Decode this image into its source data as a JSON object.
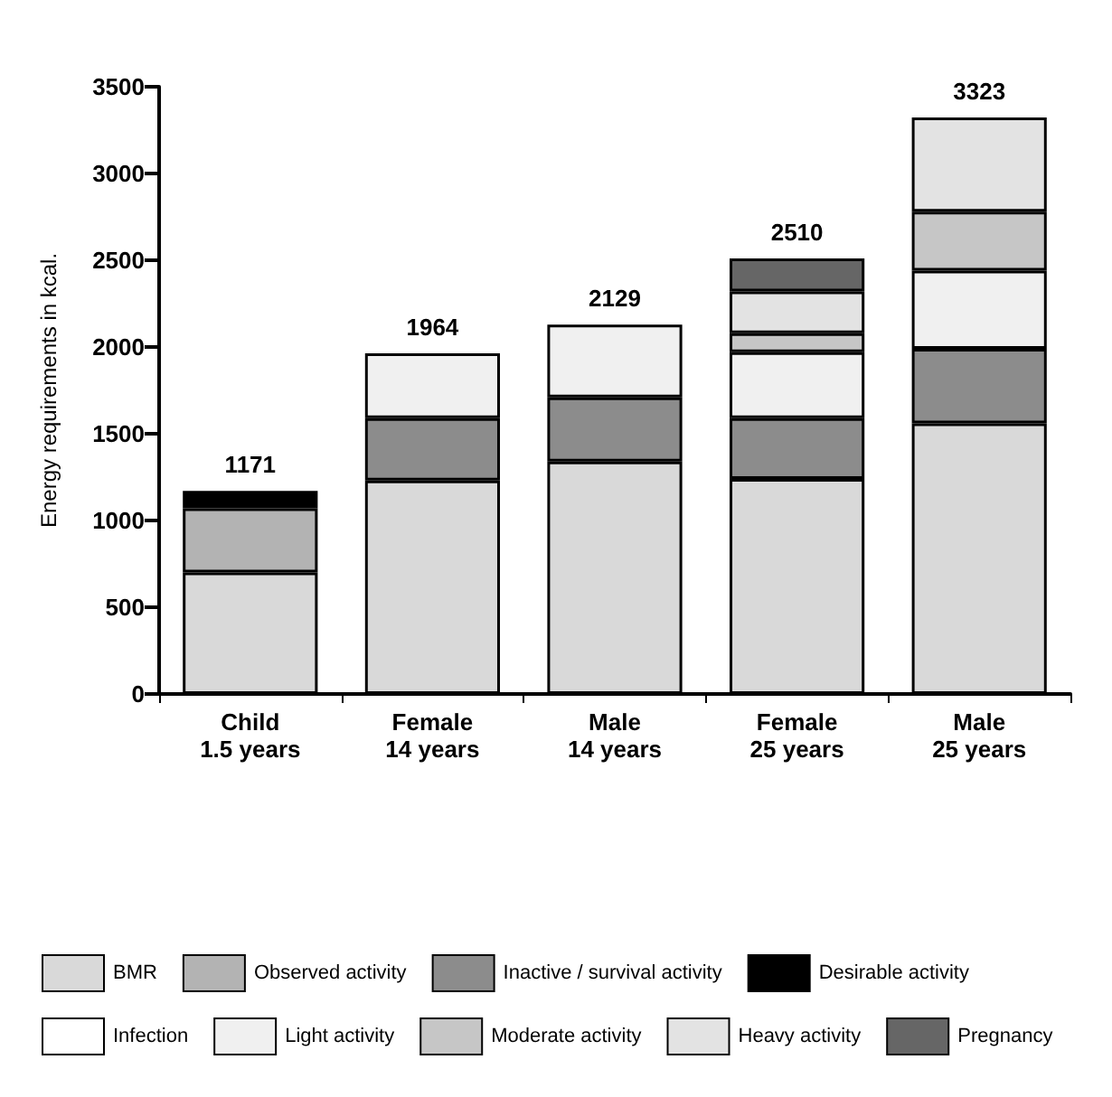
{
  "chart_data": {
    "type": "bar",
    "stacked": true,
    "ylabel": "Energy requirements in kcal.",
    "categories": [
      "Child\n1.5 years",
      "Female\n14 years",
      "Male\n14 years",
      "Female\n25 years",
      "Male\n25 years"
    ],
    "series": [
      {
        "name": "BMR",
        "color": "#d9d9d9",
        "values": [
          700,
          1230,
          1340,
          1240,
          1560
        ]
      },
      {
        "name": "Observed activity",
        "color": "#b3b3b3",
        "values": [
          370,
          null,
          null,
          null,
          null
        ]
      },
      {
        "name": "Inactive / survival activity",
        "color": "#8c8c8c",
        "values": [
          null,
          360,
          370,
          350,
          430
        ]
      },
      {
        "name": "Desirable activity",
        "color": "#000000",
        "values": [
          70,
          null,
          null,
          null,
          null
        ]
      },
      {
        "name": "Infection",
        "color": "#ffffff",
        "values": [
          31,
          null,
          null,
          null,
          null
        ]
      },
      {
        "name": "Light activity",
        "color": "#f0f0f0",
        "values": [
          null,
          374,
          419,
          380,
          450
        ]
      },
      {
        "name": "Moderate activity",
        "color": "#c6c6c6",
        "values": [
          null,
          null,
          null,
          110,
          340
        ]
      },
      {
        "name": "Heavy activity",
        "color": "#e3e3e3",
        "values": [
          null,
          null,
          null,
          240,
          543
        ]
      },
      {
        "name": "Pregnancy",
        "color": "#666666",
        "values": [
          null,
          null,
          null,
          190,
          null
        ]
      }
    ],
    "totals": [
      "1171",
      "1964",
      "2129",
      "2510",
      "3323"
    ],
    "ylim": [
      0,
      3500
    ],
    "yticks": [
      0,
      500,
      1000,
      1500,
      2000,
      2500,
      3000,
      3500
    ],
    "grid": false,
    "legend": "bottom"
  }
}
